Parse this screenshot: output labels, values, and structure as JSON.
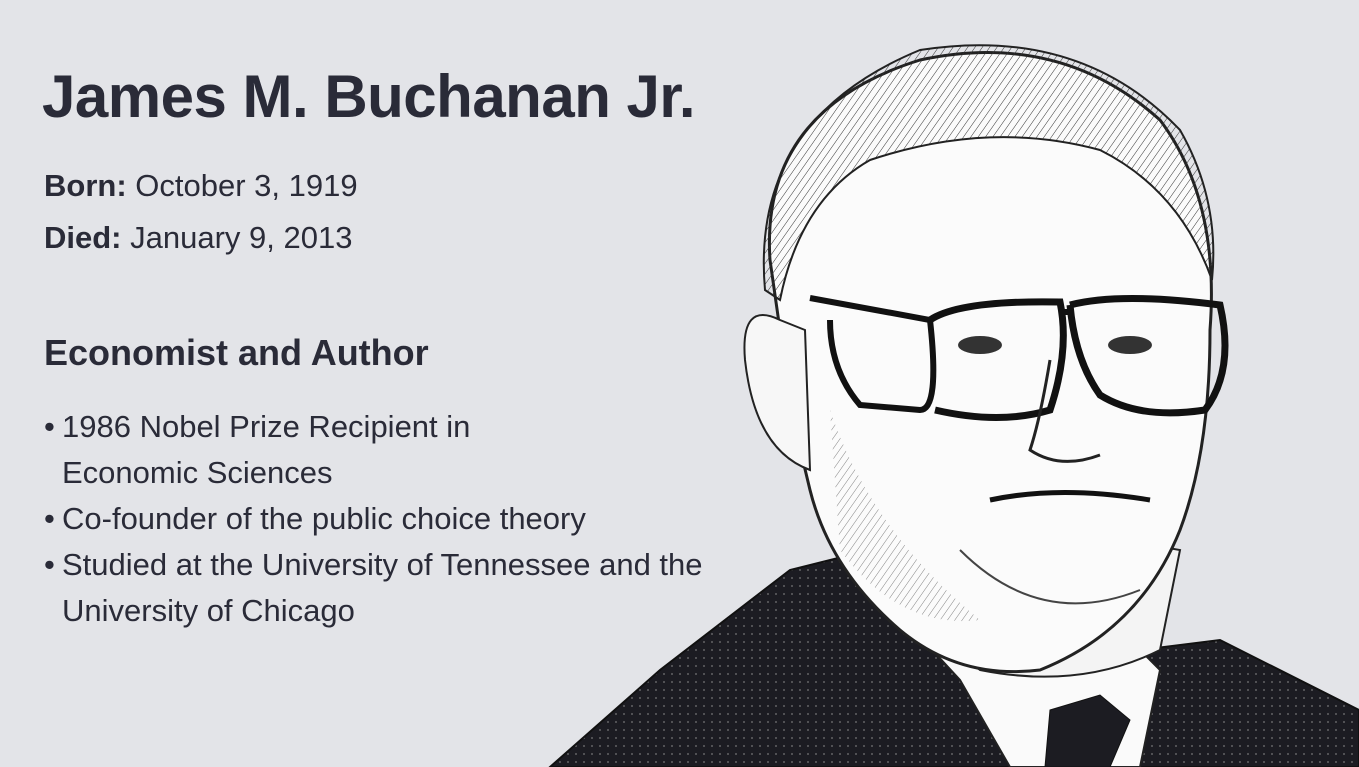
{
  "title": "James M. Buchanan Jr.",
  "born": {
    "label": "Born:",
    "value": "October 3, 1919"
  },
  "died": {
    "label": "Died:",
    "value": "January 9, 2013"
  },
  "subtitle": "Economist and Author",
  "bullets": [
    "1986 Nobel Prize Recipient in Economic Sciences",
    "Co-founder of the public choice theory",
    "Studied at the University of Tennessee and the University of Chicago"
  ],
  "colors": {
    "background": "#e3e4e8",
    "text": "#2a2b38",
    "suit": "#1c1c22"
  },
  "portrait": {
    "description_icon": "portrait-illustration"
  }
}
